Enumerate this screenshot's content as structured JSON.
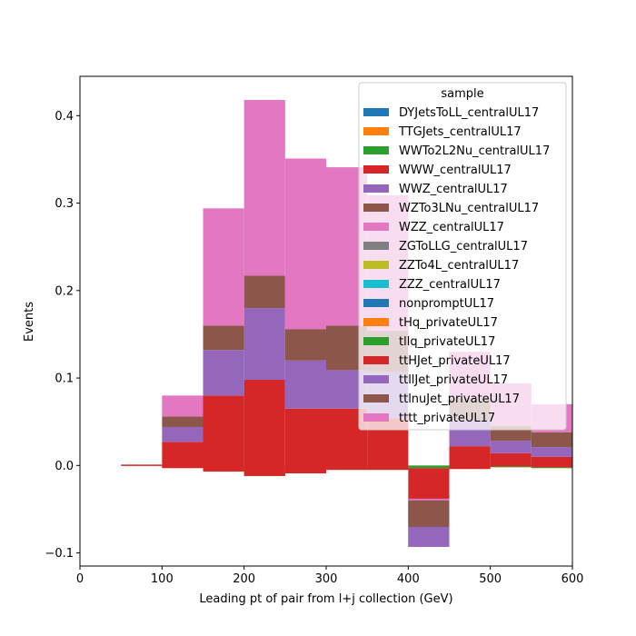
{
  "chart_data": {
    "type": "bar",
    "stacked": true,
    "histogram": true,
    "bin_edges": [
      0,
      50,
      100,
      150,
      200,
      250,
      300,
      350,
      400,
      450,
      500,
      550,
      600
    ],
    "xlabel": "Leading pt of pair from l+j collection (GeV)",
    "ylabel": "Events",
    "xlim": [
      0,
      600
    ],
    "ylim": [
      -0.115,
      0.445
    ],
    "x_ticks": [
      0,
      100,
      200,
      300,
      400,
      500,
      600
    ],
    "y_ticks": [
      -0.1,
      0.0,
      0.1,
      0.2,
      0.3,
      0.4
    ],
    "x_tick_labels": [
      "0",
      "100",
      "200",
      "300",
      "400",
      "500",
      "600"
    ],
    "y_tick_labels": [
      "−0.1",
      "0.0",
      "0.1",
      "0.2",
      "0.3",
      "0.4"
    ],
    "grid": false,
    "legend": {
      "title": "sample",
      "placement": "top-right",
      "alpha": 0.75
    },
    "series": [
      {
        "name": "DYJetsToLL_centralUL17",
        "color": "#1f77b4",
        "values": [
          0,
          0,
          0,
          0,
          0,
          0,
          0,
          0,
          0,
          0,
          0,
          0
        ]
      },
      {
        "name": "TTGJets_centralUL17",
        "color": "#ff7f0e",
        "values": [
          0,
          0,
          -0.003,
          -0.005,
          -0.009,
          -0.007,
          -0.004,
          -0.003,
          0,
          -0.004,
          -0.002,
          -0.003
        ]
      },
      {
        "name": "WWTo2L2Nu_centralUL17",
        "color": "#2ca02c",
        "values": [
          0,
          0,
          0,
          -0.002,
          -0.003,
          -0.002,
          -0.001,
          -0.002,
          -0.003,
          0,
          0.001,
          0.001
        ]
      },
      {
        "name": "WWW_centralUL17",
        "color": "#d62728",
        "values": [
          0,
          0,
          0,
          0,
          0,
          0,
          0,
          0,
          0,
          0,
          0,
          0
        ]
      },
      {
        "name": "WWZ_centralUL17",
        "color": "#9467bd",
        "values": [
          0,
          0,
          0,
          0,
          0,
          0,
          0,
          0,
          0,
          0,
          0,
          0
        ]
      },
      {
        "name": "WZTo3LNu_centralUL17",
        "color": "#8c564b",
        "values": [
          0,
          0,
          0,
          0,
          0,
          0,
          0,
          0,
          0,
          0,
          0,
          0
        ]
      },
      {
        "name": "WZZ_centralUL17",
        "color": "#e377c2",
        "values": [
          0,
          0,
          0,
          0,
          0,
          0,
          0,
          0,
          0,
          0,
          0,
          0
        ]
      },
      {
        "name": "ZGToLLG_centralUL17",
        "color": "#7f7f7f",
        "values": [
          0,
          0,
          0,
          0,
          0,
          0,
          0,
          0,
          0,
          0,
          0,
          0
        ]
      },
      {
        "name": "ZZTo4L_centralUL17",
        "color": "#bcbd22",
        "values": [
          0,
          0,
          0,
          0,
          0,
          0,
          0,
          0,
          0,
          0,
          0,
          0
        ]
      },
      {
        "name": "ZZZ_centralUL17",
        "color": "#17becf",
        "values": [
          0,
          0,
          0,
          0,
          0,
          0,
          0,
          0,
          0,
          0,
          0,
          0
        ]
      },
      {
        "name": "nonpromptUL17",
        "color": "#1f77b4",
        "values": [
          0,
          0,
          0,
          0,
          0,
          0,
          0,
          0,
          0,
          0,
          0,
          0
        ]
      },
      {
        "name": "tHq_privateUL17",
        "color": "#ff7f0e",
        "values": [
          0,
          0,
          0,
          0,
          0,
          0,
          0,
          0,
          0,
          0,
          0,
          0
        ]
      },
      {
        "name": "tllq_privateUL17",
        "color": "#2ca02c",
        "values": [
          0,
          0,
          0,
          0,
          0,
          0,
          0,
          0,
          0,
          0,
          0,
          0
        ]
      },
      {
        "name": "ttHJet_privateUL17",
        "color": "#d62728",
        "values": [
          0,
          0.001,
          0.03,
          0.087,
          0.11,
          0.074,
          0.07,
          0.059,
          -0.09,
          0.026,
          0.015,
          0.012
        ]
      },
      {
        "name": "ttllJet_privateUL17",
        "color": "#9467bd",
        "values": [
          0,
          0,
          0.017,
          0.052,
          0.082,
          0.055,
          0.044,
          0.053,
          0.023,
          0.03,
          0.014,
          0.011
        ]
      },
      {
        "name": "ttlnuJet_privateUL17",
        "color": "#8c564b",
        "values": [
          0,
          0,
          0.012,
          0.028,
          0.037,
          0.036,
          0.051,
          0.047,
          0.032,
          0.025,
          0.017,
          0.017
        ]
      },
      {
        "name": "tttt_privateUL17",
        "color": "#e377c2",
        "values": [
          0,
          0,
          0.024,
          0.134,
          0.201,
          0.195,
          0.181,
          0.155,
          -0.002,
          0.053,
          0.049,
          0.032
        ]
      }
    ]
  }
}
